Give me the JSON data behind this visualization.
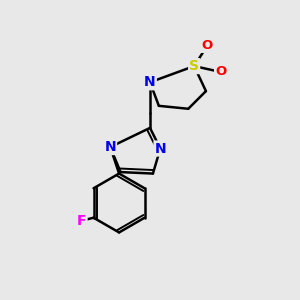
{
  "bg_color": "#e8e8e8",
  "bond_color": "#000000",
  "N_color": "#0000ee",
  "S_color": "#cccc00",
  "O_color": "#ff0000",
  "F_color": "#ff00ff",
  "line_width": 1.8,
  "figsize": [
    3.0,
    3.0
  ],
  "dpi": 100,
  "xlim": [
    0,
    10
  ],
  "ylim": [
    0,
    10
  ]
}
